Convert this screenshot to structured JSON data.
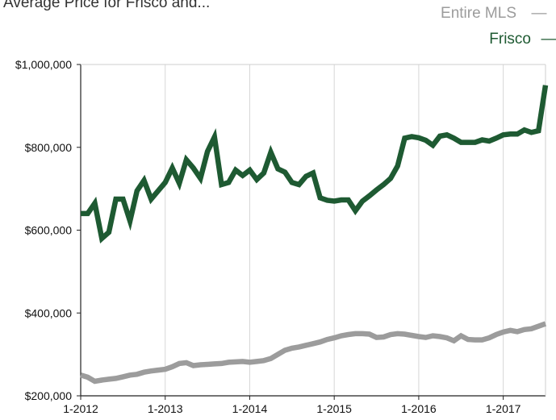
{
  "header": {
    "cut_title": "Average Price for Frisco and..."
  },
  "legend": [
    {
      "label": "Entire MLS",
      "marker": "—",
      "color": "#9c9c9c"
    },
    {
      "label": "Frisco",
      "marker": "—",
      "color": "#1e5a32"
    }
  ],
  "chart_data": {
    "type": "line",
    "title": "",
    "xlabel": "",
    "ylabel": "",
    "ylim": [
      200000,
      1000000
    ],
    "y_ticks": [
      {
        "value": 200000,
        "label": "$200,000"
      },
      {
        "value": 400000,
        "label": "$400,000"
      },
      {
        "value": 600000,
        "label": "$600,000"
      },
      {
        "value": 800000,
        "label": "$800,000"
      },
      {
        "value": 1000000,
        "label": "$1,000,000"
      }
    ],
    "x_ticks": [
      "1-2012",
      "1-2013",
      "1-2014",
      "1-2015",
      "1-2016",
      "1-2017"
    ],
    "x_range": [
      "2012-01",
      "2017-07"
    ],
    "grid": "vertical lines at year ticks",
    "x": [
      "2012-01",
      "2012-02",
      "2012-03",
      "2012-04",
      "2012-05",
      "2012-06",
      "2012-07",
      "2012-08",
      "2012-09",
      "2012-10",
      "2012-11",
      "2012-12",
      "2013-01",
      "2013-02",
      "2013-03",
      "2013-04",
      "2013-05",
      "2013-06",
      "2013-07",
      "2013-08",
      "2013-09",
      "2013-10",
      "2013-11",
      "2013-12",
      "2014-01",
      "2014-02",
      "2014-03",
      "2014-04",
      "2014-05",
      "2014-06",
      "2014-07",
      "2014-08",
      "2014-09",
      "2014-10",
      "2014-11",
      "2014-12",
      "2015-01",
      "2015-02",
      "2015-03",
      "2015-04",
      "2015-05",
      "2015-06",
      "2015-07",
      "2015-08",
      "2015-09",
      "2015-10",
      "2015-11",
      "2015-12",
      "2016-01",
      "2016-02",
      "2016-03",
      "2016-04",
      "2016-05",
      "2016-06",
      "2016-07",
      "2016-08",
      "2016-09",
      "2016-10",
      "2016-11",
      "2016-12",
      "2017-01",
      "2017-02",
      "2017-03",
      "2017-04",
      "2017-05",
      "2017-06",
      "2017-07"
    ],
    "series": [
      {
        "name": "Entire MLS",
        "color": "#9c9c9c",
        "values": [
          250000,
          245000,
          235000,
          238000,
          240000,
          242000,
          246000,
          250000,
          252000,
          257000,
          260000,
          262000,
          264000,
          270000,
          278000,
          280000,
          273000,
          275000,
          276000,
          277000,
          278000,
          281000,
          282000,
          283000,
          281000,
          283000,
          285000,
          290000,
          300000,
          310000,
          315000,
          318000,
          322000,
          326000,
          330000,
          336000,
          340000,
          345000,
          348000,
          350000,
          350000,
          349000,
          341000,
          342000,
          348000,
          350000,
          349000,
          346000,
          343000,
          341000,
          345000,
          343000,
          340000,
          333000,
          345000,
          336000,
          335000,
          335000,
          340000,
          348000,
          354000,
          358000,
          355000,
          360000,
          362000,
          368000,
          374000
        ]
      },
      {
        "name": "Frisco",
        "color": "#1e5a32",
        "values": [
          640000,
          640000,
          665000,
          580000,
          595000,
          675000,
          675000,
          622000,
          695000,
          720000,
          675000,
          695000,
          715000,
          750000,
          713000,
          770000,
          750000,
          725000,
          790000,
          825000,
          710000,
          715000,
          745000,
          732000,
          745000,
          722000,
          738000,
          788000,
          748000,
          740000,
          715000,
          710000,
          730000,
          738000,
          678000,
          672000,
          670000,
          673000,
          673000,
          647000,
          670000,
          683000,
          697000,
          710000,
          725000,
          755000,
          822000,
          826000,
          823000,
          817000,
          805000,
          827000,
          830000,
          822000,
          812000,
          812000,
          812000,
          818000,
          815000,
          822000,
          830000,
          832000,
          832000,
          842000,
          836000,
          840000,
          950000
        ]
      }
    ]
  }
}
